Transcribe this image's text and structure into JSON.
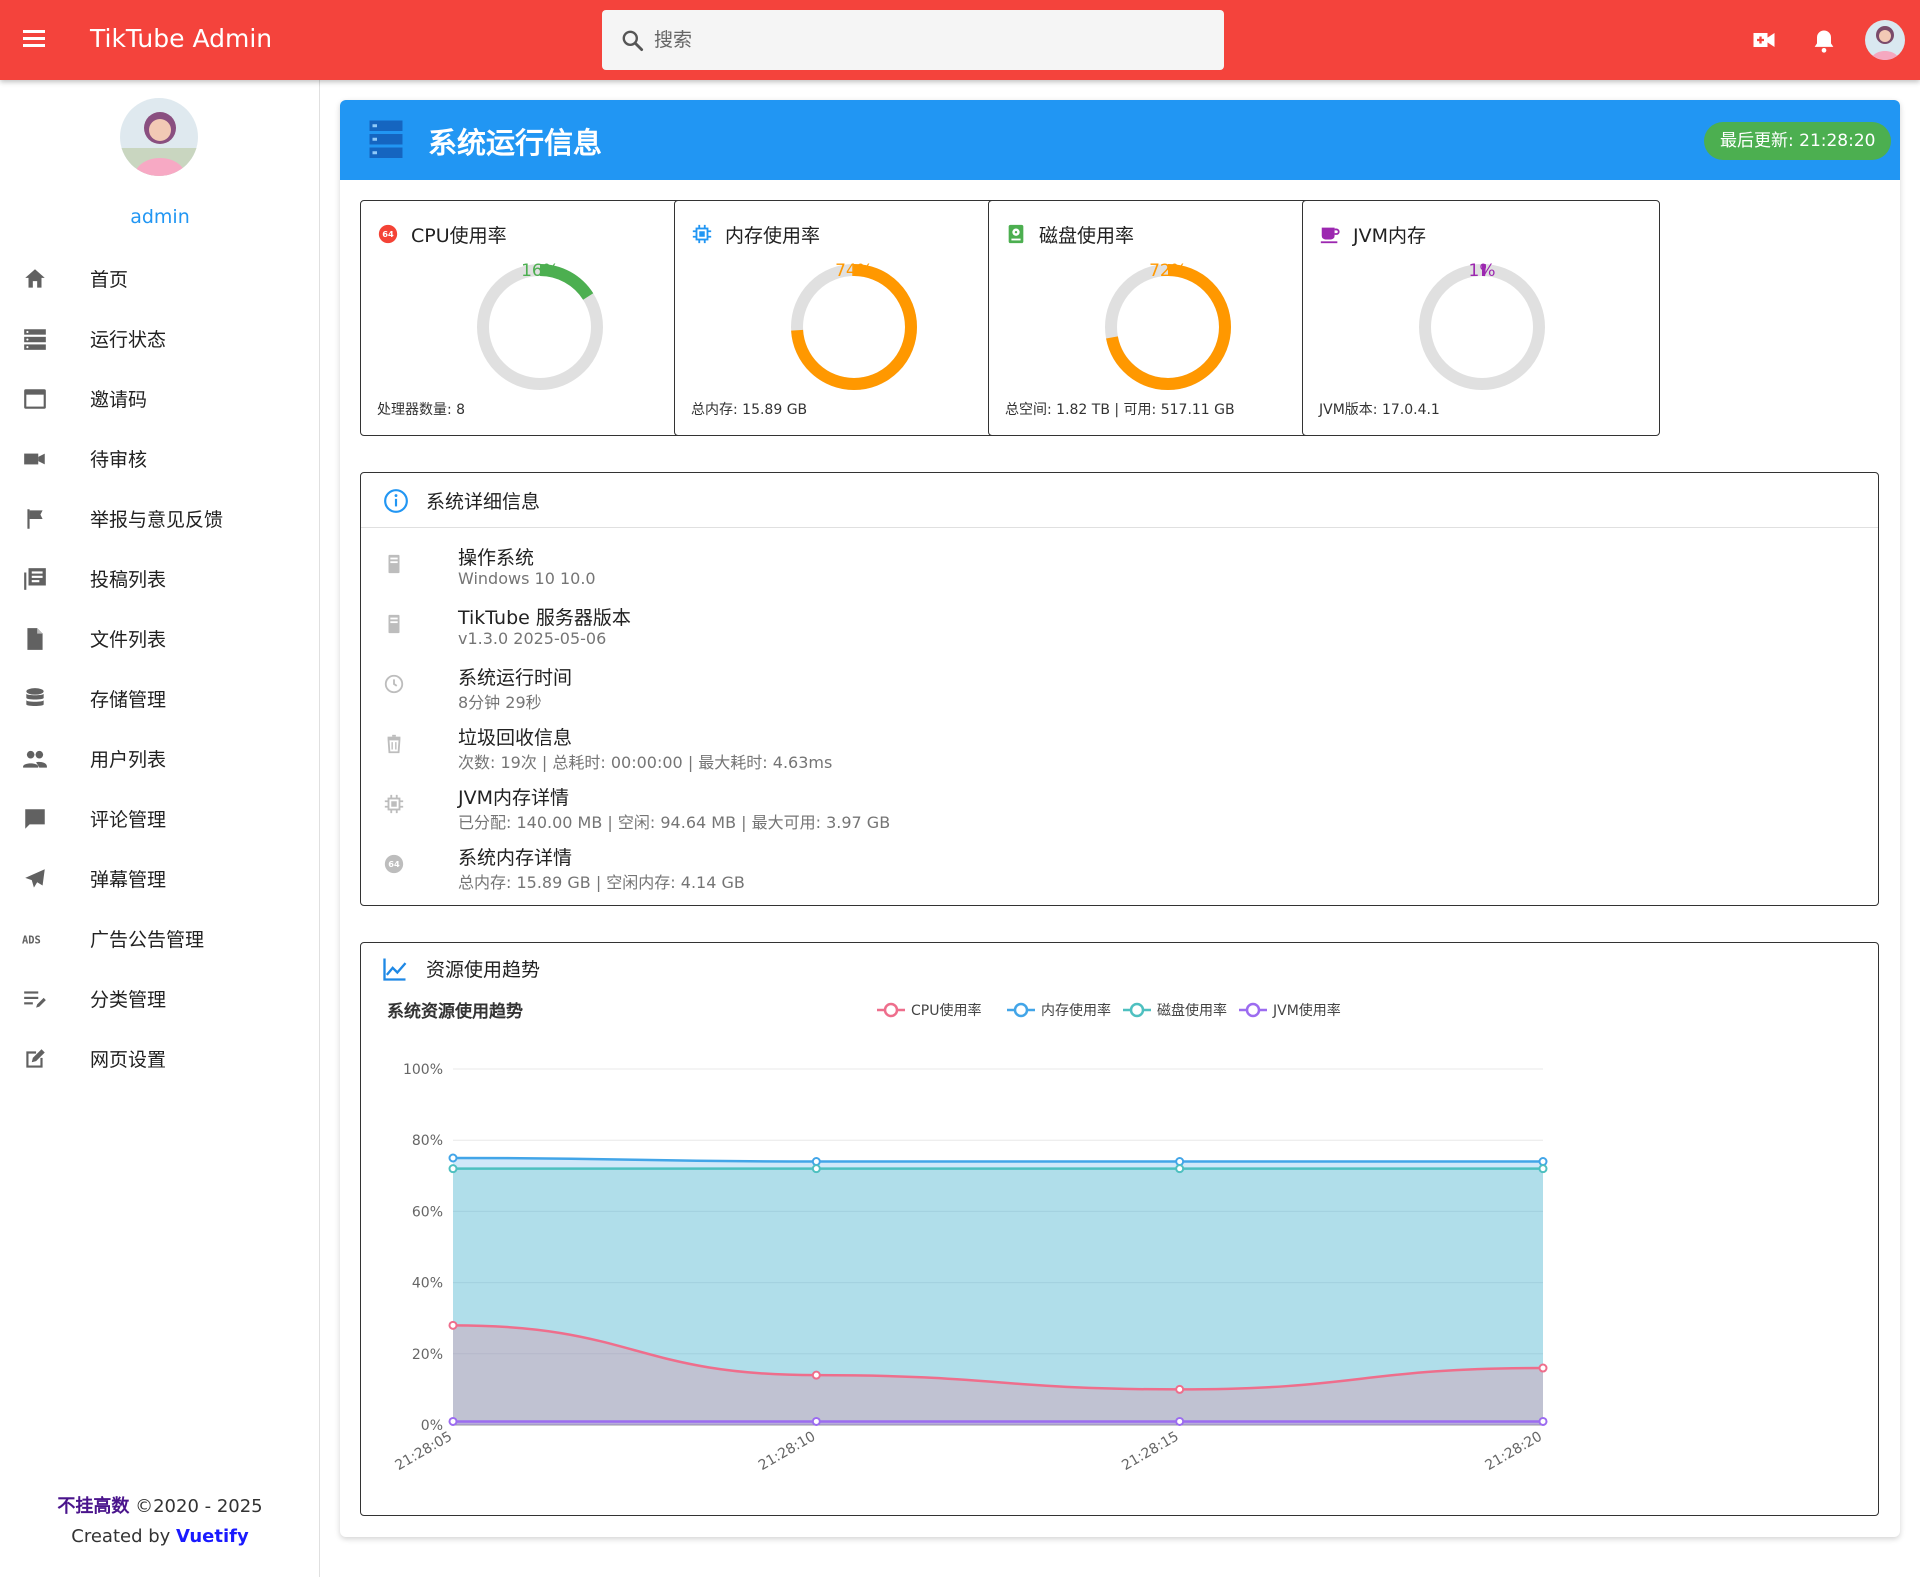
{
  "appbar": {
    "title": "TikTube Admin",
    "search_placeholder": "搜索",
    "color": "#f4433c"
  },
  "sidebar": {
    "username": "admin",
    "items": [
      {
        "label": "首页",
        "icon": "home-icon"
      },
      {
        "label": "运行状态",
        "icon": "dns-icon"
      },
      {
        "label": "邀请码",
        "icon": "card-icon"
      },
      {
        "label": "待审核",
        "icon": "videocam-icon"
      },
      {
        "label": "举报与意见反馈",
        "icon": "flag-icon"
      },
      {
        "label": "投稿列表",
        "icon": "library-icon"
      },
      {
        "label": "文件列表",
        "icon": "file-icon"
      },
      {
        "label": "存储管理",
        "icon": "database-icon"
      },
      {
        "label": "用户列表",
        "icon": "people-icon"
      },
      {
        "label": "评论管理",
        "icon": "comment-icon"
      },
      {
        "label": "弹幕管理",
        "icon": "send-icon"
      },
      {
        "label": "广告公告管理",
        "icon": "ads-icon"
      },
      {
        "label": "分类管理",
        "icon": "edit-list-icon"
      },
      {
        "label": "网页设置",
        "icon": "edit-icon"
      }
    ],
    "footer": {
      "brand": "不挂高数",
      "copyright": " ©2020 - 2025",
      "created_by": "Created by ",
      "framework": "Vuetify"
    }
  },
  "main": {
    "title": "系统运行信息",
    "last_update": "最后更新: 21:28:20",
    "header_color": "#2196f3",
    "metrics": [
      {
        "title": "CPU使用率",
        "value_label": "16%",
        "percent": 16,
        "color": "#4caf50",
        "footer": "处理器数量: 8",
        "icon": "cpu-64-icon"
      },
      {
        "title": "内存使用率",
        "value_label": "74%",
        "percent": 74,
        "color": "#ff9800",
        "footer": "总内存: 15.89 GB",
        "icon": "chip-icon"
      },
      {
        "title": "磁盘使用率",
        "value_label": "72%",
        "percent": 72,
        "color": "#ff9800",
        "footer": "总空间: 1.82 TB | 可用: 517.11 GB",
        "icon": "harddisk-icon"
      },
      {
        "title": "JVM内存",
        "value_label": "1%",
        "percent": 1,
        "color": "#9c27b0",
        "footer": "JVM版本: 17.0.4.1",
        "icon": "coffee-icon"
      }
    ],
    "details": {
      "title": "系统详细信息",
      "rows": [
        {
          "title": "操作系统",
          "value": "Windows 10 10.0",
          "icon": "server-icon"
        },
        {
          "title": "TikTube 服务器版本",
          "value": "v1.3.0 2025-05-06",
          "icon": "server-icon"
        },
        {
          "title": "系统运行时间",
          "value": "8分钟 29秒",
          "icon": "clock-icon"
        },
        {
          "title": "垃圾回收信息",
          "value": "次数: 19次 | 总耗时: 00:00:00 | 最大耗时: 4.63ms",
          "icon": "trash-icon"
        },
        {
          "title": "JVM内存详情",
          "value": "已分配: 140.00 MB | 空闲: 94.64 MB | 最大可用: 3.97 GB",
          "icon": "chip-icon"
        },
        {
          "title": "系统内存详情",
          "value": "总内存: 15.89 GB | 空闲内存: 4.14 GB",
          "icon": "cpu-64-icon"
        }
      ]
    },
    "trend": {
      "title": "资源使用趋势"
    }
  },
  "chart_data": {
    "type": "area",
    "title": "系统资源使用趋势",
    "x": [
      "21:28:05",
      "21:28:10",
      "21:28:15",
      "21:28:20"
    ],
    "ylim": [
      0,
      100
    ],
    "yticks": [
      "0%",
      "20%",
      "40%",
      "60%",
      "80%",
      "100%"
    ],
    "grid": true,
    "legend_position": "top",
    "series": [
      {
        "name": "CPU使用率",
        "color": "#ee6e8c",
        "values": [
          28,
          14,
          10,
          16
        ]
      },
      {
        "name": "内存使用率",
        "color": "#42a5e8",
        "values": [
          75,
          74,
          74,
          74
        ]
      },
      {
        "name": "磁盘使用率",
        "color": "#4ec0c0",
        "values": [
          72,
          72,
          72,
          72
        ]
      },
      {
        "name": "JVM使用率",
        "color": "#9c6cf0",
        "values": [
          1,
          1,
          1,
          1
        ]
      }
    ]
  }
}
